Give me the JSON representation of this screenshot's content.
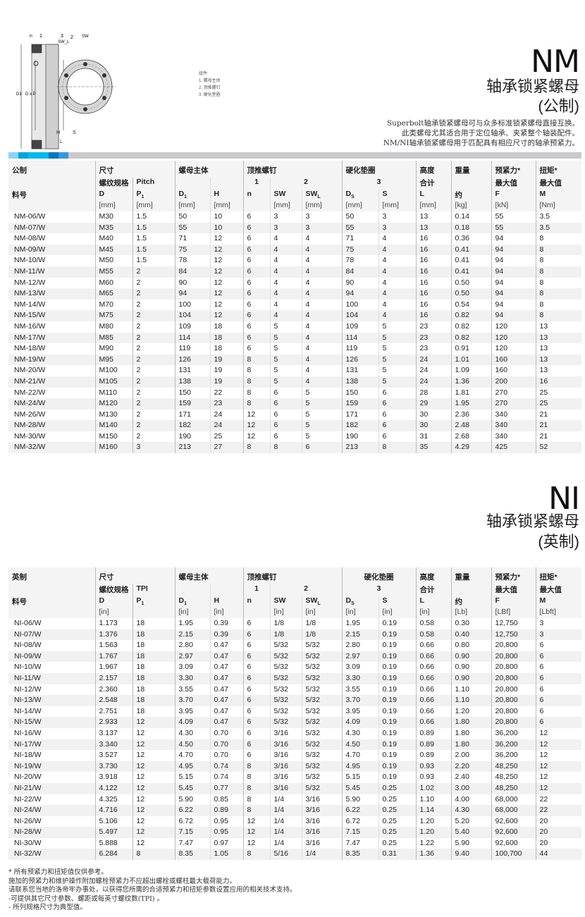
{
  "drawing": {
    "labels": {
      "n": "n",
      "one": "1",
      "three": "3",
      "two": "2",
      "sw": "SW",
      "swl": "SW_L",
      "d1": "D1",
      "dxp": "D x P",
      "ds": "Ds",
      "h": "H",
      "s": "S",
      "l": "L"
    },
    "legend": {
      "title": "组件:",
      "items": [
        "1. 螺母主体",
        "2. 顶推螺钉",
        "3. 硬化垫圈"
      ]
    }
  },
  "nm": {
    "title": "NM",
    "subtitle1": "轴承锁紧螺母",
    "subtitle2": "(公制)",
    "desc": [
      "Superbolt轴承锁紧螺母可与众多标准锁紧螺母直接互换。",
      "此类螺母尤其适合用于定位轴承、夹紧整个轴装配件。",
      "NM/NI轴承锁紧螺母用于匹配具有相应尺寸的轴承预紧力。"
    ],
    "stripe_colors": [
      "#8fd3f4",
      "#00a3e0",
      "#00b9ee",
      "#0077c0",
      "#3399dd"
    ],
    "header": {
      "g1": "公制",
      "g2": "尺寸",
      "g3": "螺母主体",
      "g4": "顶推螺钉",
      "g5": "硬化垫圈",
      "g6": "高度",
      "g7": "重量",
      "g8": "预紧力*",
      "g9": "扭矩*",
      "r2": {
        "thread": "螺纹规格",
        "pitch": "Pitch",
        "n1": "1",
        "n2": "2",
        "n3": "3",
        "total": "合计",
        "max1": "最大值",
        "max2": "最大值"
      },
      "r3": {
        "part": "料号",
        "cols": [
          "D",
          "P1",
          "D1",
          "H",
          "n",
          "SW",
          "SWL",
          "Ds",
          "S",
          "L",
          "约",
          "F",
          "M"
        ]
      },
      "units": [
        "[mm]",
        "[mm]",
        "[mm]",
        "[mm]",
        "",
        "[mm]",
        "[mm]",
        "[mm]",
        "[mm]",
        "[mm]",
        "[kg]",
        "[kN]",
        "[Nm]"
      ]
    },
    "rows": [
      [
        "NM-06/W",
        "M30",
        "1.5",
        "50",
        "10",
        "6",
        "3",
        "3",
        "50",
        "3",
        "13",
        "0.14",
        "55",
        "3.5"
      ],
      [
        "NM-07/W",
        "M35",
        "1.5",
        "55",
        "10",
        "6",
        "3",
        "3",
        "55",
        "3",
        "13",
        "0.18",
        "55",
        "3.5"
      ],
      [
        "NM-08/W",
        "M40",
        "1.5",
        "71",
        "12",
        "6",
        "4",
        "4",
        "71",
        "4",
        "16",
        "0.36",
        "94",
        "8"
      ],
      [
        "NM-09/W",
        "M45",
        "1.5",
        "75",
        "12",
        "6",
        "4",
        "4",
        "75",
        "4",
        "16",
        "0.41",
        "94",
        "8"
      ],
      [
        "NM-10/W",
        "M50",
        "1.5",
        "78",
        "12",
        "6",
        "4",
        "4",
        "78",
        "4",
        "16",
        "0.41",
        "94",
        "8"
      ],
      [
        "NM-11/W",
        "M55",
        "2",
        "84",
        "12",
        "6",
        "4",
        "4",
        "84",
        "4",
        "16",
        "0.41",
        "94",
        "8"
      ],
      [
        "NM-12/W",
        "M60",
        "2",
        "90",
        "12",
        "6",
        "4",
        "4",
        "90",
        "4",
        "16",
        "0.50",
        "94",
        "8"
      ],
      [
        "NM-13/W",
        "M65",
        "2",
        "94",
        "12",
        "6",
        "4",
        "4",
        "94",
        "4",
        "16",
        "0.50",
        "94",
        "8"
      ],
      [
        "NM-14/W",
        "M70",
        "2",
        "100",
        "12",
        "6",
        "4",
        "4",
        "100",
        "4",
        "16",
        "0.54",
        "94",
        "8"
      ],
      [
        "NM-15/W",
        "M75",
        "2",
        "104",
        "12",
        "6",
        "4",
        "4",
        "104",
        "4",
        "16",
        "0.82",
        "94",
        "8"
      ],
      [
        "NM-16/W",
        "M80",
        "2",
        "109",
        "18",
        "6",
        "5",
        "4",
        "109",
        "5",
        "23",
        "0.82",
        "120",
        "13"
      ],
      [
        "NM-17/W",
        "M85",
        "2",
        "114",
        "18",
        "6",
        "5",
        "4",
        "114",
        "5",
        "23",
        "0.82",
        "120",
        "13"
      ],
      [
        "NM-18/W",
        "M90",
        "2",
        "119",
        "18",
        "6",
        "5",
        "4",
        "119",
        "5",
        "23",
        "0.91",
        "120",
        "13"
      ],
      [
        "NM-19/W",
        "M95",
        "2",
        "126",
        "19",
        "8",
        "5",
        "4",
        "126",
        "5",
        "24",
        "1.01",
        "160",
        "13"
      ],
      [
        "NM-20/W",
        "M100",
        "2",
        "131",
        "19",
        "8",
        "5",
        "4",
        "131",
        "5",
        "24",
        "1.09",
        "160",
        "13"
      ],
      [
        "NM-21/W",
        "M105",
        "2",
        "138",
        "19",
        "8",
        "5",
        "4",
        "138",
        "5",
        "24",
        "1.36",
        "200",
        "16"
      ],
      [
        "NM-22/W",
        "M110",
        "2",
        "150",
        "22",
        "8",
        "6",
        "5",
        "150",
        "6",
        "28",
        "1.81",
        "270",
        "25"
      ],
      [
        "NM-24/W",
        "M120",
        "2",
        "159",
        "23",
        "8",
        "6",
        "5",
        "159",
        "6",
        "29",
        "1.95",
        "270",
        "25"
      ],
      [
        "NM-26/W",
        "M130",
        "2",
        "171",
        "24",
        "12",
        "6",
        "5",
        "171",
        "6",
        "30",
        "2.36",
        "340",
        "21"
      ],
      [
        "NM-28/W",
        "M140",
        "2",
        "182",
        "24",
        "12",
        "6",
        "5",
        "182",
        "6",
        "30",
        "2.48",
        "340",
        "21"
      ],
      [
        "NM-30/W",
        "M150",
        "2",
        "190",
        "25",
        "12",
        "6",
        "5",
        "190",
        "6",
        "31",
        "2.68",
        "340",
        "21"
      ],
      [
        "NM-32/W",
        "M160",
        "3",
        "213",
        "27",
        "8",
        "8",
        "6",
        "213",
        "8",
        "35",
        "4.29",
        "425",
        "52"
      ]
    ]
  },
  "ni": {
    "title": "NI",
    "subtitle1": "轴承锁紧螺母",
    "subtitle2": "(英制)",
    "header": {
      "g1": "英制",
      "g2": "尺寸",
      "g3": "螺母主体",
      "g4": "顶推螺钉",
      "g5": "硬化垫圈",
      "g6": "高度",
      "g7": "重量",
      "g8": "预紧力*",
      "g9": "扭矩*",
      "r2": {
        "thread": "螺纹规格",
        "pitch": "TPI",
        "n1": "1",
        "n2": "2",
        "n3": "3",
        "total": "合计",
        "max1": "最大值",
        "max2": "最大值"
      },
      "r3": {
        "part": "料号",
        "cols": [
          "D",
          "P1",
          "D1",
          "H",
          "n",
          "SW",
          "SWL",
          "Ds",
          "S",
          "L",
          "约",
          "F",
          "M"
        ]
      },
      "units": [
        "[in]",
        "",
        "[in]",
        "[in]",
        "",
        "[in]",
        "[in]",
        "[in]",
        "[in]",
        "[in]",
        "[Lb]",
        "[LBf]",
        "[Lbft]"
      ]
    },
    "rows": [
      [
        "NI-06/W",
        "1.173",
        "18",
        "1.95",
        "0.39",
        "6",
        "1/8",
        "1/8",
        "1.95",
        "0.19",
        "0.58",
        "0.30",
        "12,750",
        "3"
      ],
      [
        "NI-07/W",
        "1.376",
        "18",
        "2.15",
        "0.39",
        "6",
        "1/8",
        "1/8",
        "2.15",
        "0.19",
        "0.58",
        "0.40",
        "12,750",
        "3"
      ],
      [
        "NI-08/W",
        "1.563",
        "18",
        "2.80",
        "0.47",
        "6",
        "5/32",
        "5/32",
        "2.80",
        "0.19",
        "0.66",
        "0.80",
        "20,800",
        "6"
      ],
      [
        "NI-09/W",
        "1.767",
        "18",
        "2.97",
        "0.47",
        "6",
        "5/32",
        "5/32",
        "2.97",
        "0.19",
        "0.66",
        "0.90",
        "20,800",
        "6"
      ],
      [
        "NI-10/W",
        "1.967",
        "18",
        "3.09",
        "0.47",
        "6",
        "5/32",
        "5/32",
        "3.09",
        "0.19",
        "0.66",
        "0.90",
        "20,800",
        "6"
      ],
      [
        "NI-11/W",
        "2.157",
        "18",
        "3.30",
        "0.47",
        "6",
        "5/32",
        "5/32",
        "3.30",
        "0.19",
        "0.66",
        "0.90",
        "20,800",
        "6"
      ],
      [
        "NI-12/W",
        "2.360",
        "18",
        "3.55",
        "0.47",
        "6",
        "5/32",
        "5/32",
        "3.55",
        "0.19",
        "0.66",
        "1.10",
        "20,800",
        "6"
      ],
      [
        "NI-13/W",
        "2.548",
        "18",
        "3.70",
        "0.47",
        "6",
        "5/32",
        "5/32",
        "3.70",
        "0.19",
        "0.66",
        "1.10",
        "20,800",
        "6"
      ],
      [
        "NI-14/W",
        "2.751",
        "18",
        "3.95",
        "0.47",
        "6",
        "5/32",
        "5/32",
        "3.95",
        "0.19",
        "0.66",
        "1.20",
        "20,800",
        "6"
      ],
      [
        "NI-15/W",
        "2.933",
        "12",
        "4.09",
        "0.47",
        "6",
        "5/32",
        "5/32",
        "4.09",
        "0.19",
        "0.66",
        "1.80",
        "20,800",
        "6"
      ],
      [
        "NI-16/W",
        "3.137",
        "12",
        "4.30",
        "0.70",
        "6",
        "3/16",
        "5/32",
        "4.30",
        "0.19",
        "0.89",
        "1.80",
        "36,200",
        "12"
      ],
      [
        "NI-17/W",
        "3.340",
        "12",
        "4.50",
        "0.70",
        "6",
        "3/16",
        "5/32",
        "4.50",
        "0.19",
        "0.89",
        "1.80",
        "36,200",
        "12"
      ],
      [
        "NI-18/W",
        "3.527",
        "12",
        "4.70",
        "0.70",
        "6",
        "3/16",
        "5/32",
        "4.70",
        "0.19",
        "0.89",
        "2.00",
        "36,200",
        "12"
      ],
      [
        "NI-19/W",
        "3.730",
        "12",
        "4.95",
        "0.74",
        "8",
        "3/16",
        "5/32",
        "4.95",
        "0.19",
        "0.93",
        "2.20",
        "48,250",
        "12"
      ],
      [
        "NI-20/W",
        "3.918",
        "12",
        "5.15",
        "0.74",
        "8",
        "3/16",
        "5/32",
        "5.15",
        "0.19",
        "0.93",
        "2.40",
        "48,250",
        "12"
      ],
      [
        "NI-21/W",
        "4.122",
        "12",
        "5.45",
        "0.77",
        "8",
        "3/16",
        "5/32",
        "5.45",
        "0.25",
        "1.02",
        "3.00",
        "48,250",
        "12"
      ],
      [
        "NI-22/W",
        "4.325",
        "12",
        "5.90",
        "0.85",
        "8",
        "1/4",
        "3/16",
        "5.90",
        "0.25",
        "1.10",
        "4.00",
        "68,000",
        "22"
      ],
      [
        "NI-24/W",
        "4.716",
        "12",
        "6.22",
        "0.89",
        "8",
        "1/4",
        "3/16",
        "6.22",
        "0.25",
        "1.14",
        "4.30",
        "68,000",
        "22"
      ],
      [
        "NI-26/W",
        "5.106",
        "12",
        "6.72",
        "0.95",
        "12",
        "1/4",
        "3/16",
        "6.72",
        "0.25",
        "1.20",
        "5.20",
        "92,600",
        "20"
      ],
      [
        "NI-28/W",
        "5.497",
        "12",
        "7.15",
        "0.95",
        "12",
        "1/4",
        "3/16",
        "7.15",
        "0.25",
        "1.20",
        "5.40",
        "92,600",
        "20"
      ],
      [
        "NI-30/W",
        "5.888",
        "12",
        "7.47",
        "0.97",
        "12",
        "1/4",
        "3/16",
        "7.47",
        "0.25",
        "1.22",
        "5.90",
        "92,600",
        "20"
      ],
      [
        "NI-32/W",
        "6.284",
        "8",
        "8.35",
        "1.05",
        "8",
        "5/16",
        "1/4",
        "8.35",
        "0.31",
        "1.36",
        "9.40",
        "100,700",
        "44"
      ]
    ]
  },
  "footnotes": [
    "* 所有预紧力和扭矩值仅供参考。",
    " 施加的预紧力和维护操作附加螺栓预紧力不应超出螺栓或螺柱最大载荷能力。",
    " 请联系您当地的洛帝牢办事处，以获得您所需的合适预紧力和扭矩参数设置应用的相关技术支持。",
    "-可提供其它尺寸参数、螺距或每英寸螺纹数(TPI) 。",
    "- 所列规格尺寸为典型值。"
  ]
}
